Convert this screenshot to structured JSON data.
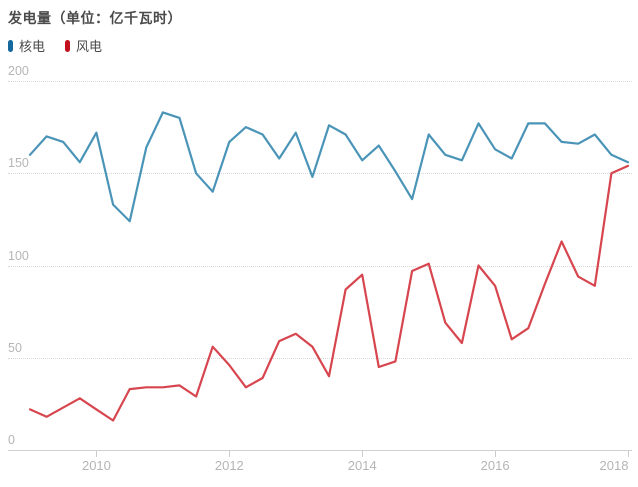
{
  "title": "发电量（单位：亿千瓦时）",
  "legend": {
    "position": "top-left",
    "items": [
      {
        "label": "核电",
        "marker_color": "#15689e"
      },
      {
        "label": "风电",
        "marker_color": "#c2101f"
      }
    ]
  },
  "axes": {
    "y": {
      "min": 0,
      "max": 200,
      "tick_labels": [
        "0",
        "50",
        "100",
        "150",
        "200"
      ]
    },
    "x": {
      "tick_labels": [
        "2010",
        "2012",
        "2014",
        "2016",
        "2018"
      ],
      "tick_quarter_indices": [
        4,
        12,
        20,
        28,
        36
      ]
    }
  },
  "chart_data": {
    "type": "line",
    "title": "发电量（单位：亿千瓦时）",
    "unit": "亿千瓦时",
    "ylim": [
      0,
      200
    ],
    "y_ticks": [
      0,
      50,
      100,
      150,
      200
    ],
    "grid": "horizontal-dotted",
    "legend_position": "top-left",
    "x": [
      "2009Q1",
      "2009Q2",
      "2009Q3",
      "2009Q4",
      "2010Q1",
      "2010Q2",
      "2010Q3",
      "2010Q4",
      "2011Q1",
      "2011Q2",
      "2011Q3",
      "2011Q4",
      "2012Q1",
      "2012Q2",
      "2012Q3",
      "2012Q4",
      "2013Q1",
      "2013Q2",
      "2013Q3",
      "2013Q4",
      "2014Q1",
      "2014Q2",
      "2014Q3",
      "2014Q4",
      "2015Q1",
      "2015Q2",
      "2015Q3",
      "2015Q4",
      "2016Q1",
      "2016Q2",
      "2016Q3",
      "2016Q4",
      "2017Q1",
      "2017Q2",
      "2017Q3",
      "2017Q4",
      "2018Q1"
    ],
    "x_axis_labeled_years": [
      "2010",
      "2012",
      "2014",
      "2016",
      "2018"
    ],
    "series": [
      {
        "name": "核电",
        "color": "#4a94b8",
        "values": [
          160,
          170,
          167,
          156,
          172,
          133,
          124,
          164,
          183,
          180,
          150,
          140,
          167,
          175,
          171,
          158,
          172,
          148,
          176,
          171,
          157,
          165,
          151,
          136,
          171,
          160,
          157,
          177,
          163,
          158,
          177,
          177,
          167,
          166,
          171,
          160,
          156
        ]
      },
      {
        "name": "风电",
        "color": "#d7464f",
        "values": [
          22,
          18,
          23,
          28,
          22,
          16,
          33,
          34,
          34,
          35,
          29,
          56,
          46,
          34,
          39,
          59,
          63,
          56,
          40,
          87,
          95,
          45,
          48,
          97,
          101,
          69,
          58,
          100,
          89,
          60,
          66,
          90,
          113,
          94,
          89,
          150,
          154
        ]
      }
    ]
  },
  "colors": {
    "background": "#ffffff",
    "title_text": "#4a4a4a",
    "axis_label_text": "#b5b5b5",
    "gridline": "#d9d9d9",
    "axis_line": "#d0d0d0",
    "nuclear_line": "#4a94b8",
    "wind_line": "#d7464f"
  }
}
